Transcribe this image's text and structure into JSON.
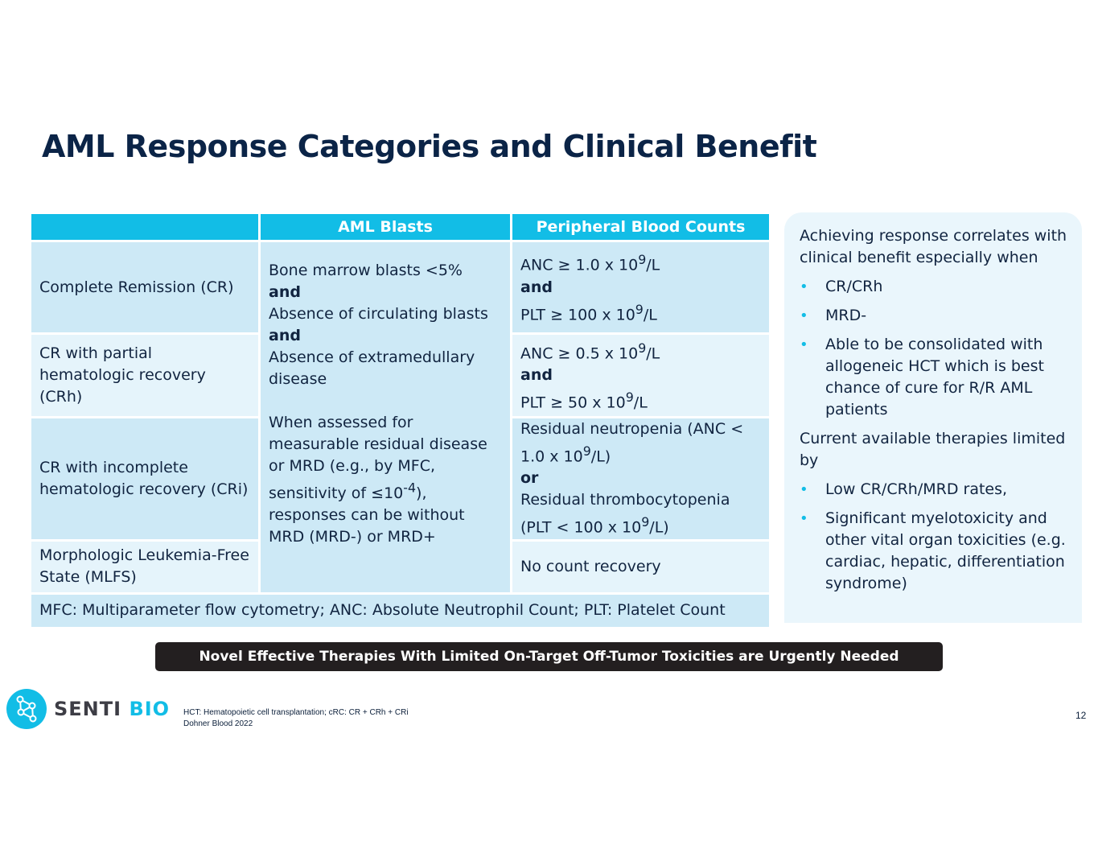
{
  "slide": {
    "title": "AML Response Categories and Clinical Benefit",
    "page_number": "12"
  },
  "table": {
    "headers": [
      "",
      "AML Blasts",
      "Peripheral Blood Counts"
    ],
    "rows": [
      {
        "category": "Complete Remission (CR)",
        "counts": {
          "l1": "ANC ≥ 1.0 x 10",
          "l1_sup": "9",
          "l1_end": "/L",
          "l2": "and",
          "l3": "PLT  ≥ 100 x 10",
          "l3_sup": "9",
          "l3_end": "/L"
        }
      },
      {
        "category": "CR with partial hematologic recovery (CRh)",
        "counts": {
          "l1": "ANC ≥ 0.5 x 10",
          "l1_sup": "9",
          "l1_end": "/L",
          "l2": "and",
          "l3": "PLT  ≥ 50 x 10",
          "l3_sup": "9",
          "l3_end": "/L"
        }
      },
      {
        "category": "CR with incomplete hematologic recovery (CRi)",
        "counts": {
          "l1": "Residual neutropenia (ANC < 1.0 x 10",
          "l1_sup": "9",
          "l1_end": "/L)",
          "l2": "or",
          "l3": "Residual thrombocytopenia (PLT < 100 x 10",
          "l3_sup": "9",
          "l3_end": "/L)"
        }
      },
      {
        "category": "Morphologic Leukemia-Free State (MLFS)",
        "counts": {
          "text": "No count recovery"
        }
      }
    ],
    "blasts": {
      "l1": "Bone marrow blasts <5%",
      "and1": "and",
      "l2": "Absence of circulating blasts",
      "and2": "and",
      "l3": "Absence of extramedullary disease",
      "mrd_pre": "When assessed for measurable residual disease or MRD (e.g., by MFC, sensitivity of ≤10",
      "mrd_sup": "-4",
      "mrd_post": "), responses can be without MRD (MRD-) or MRD+"
    },
    "footer": "MFC: Multiparameter flow cytometry; ANC: Absolute Neutrophil Count; PLT: Platelet Count"
  },
  "panel": {
    "intro": "Achieving response correlates with clinical benefit especially when",
    "bullets1": [
      "CR/CRh",
      "MRD-",
      "Able to be consolidated with allogeneic HCT which is best chance of cure for R/R AML patients"
    ],
    "heading2": "Current available therapies limited by",
    "bullets2": [
      "Low CR/CRh/MRD rates,",
      "Significant myelotoxicity and other vital organ toxicities (e.g. cardiac, hepatic, differentiation syndrome)"
    ]
  },
  "banner": "Novel Effective Therapies With Limited On-Target Off-Tumor Toxicities are Urgently Needed",
  "logo": {
    "word1": "SENTI",
    "word2": "BIO",
    "icon": "senti-molecule-icon"
  },
  "footnotes": [
    "HCT: Hematopoietic cell transplantation; cRC: CR + CRh + CRi",
    "Dohner Blood 2022"
  ],
  "colors": {
    "accent": "#12bde6",
    "title": "#0b2447",
    "cell_dark": "#cde9f6",
    "cell_light": "#e5f4fb",
    "banner_bg": "#231f20"
  }
}
